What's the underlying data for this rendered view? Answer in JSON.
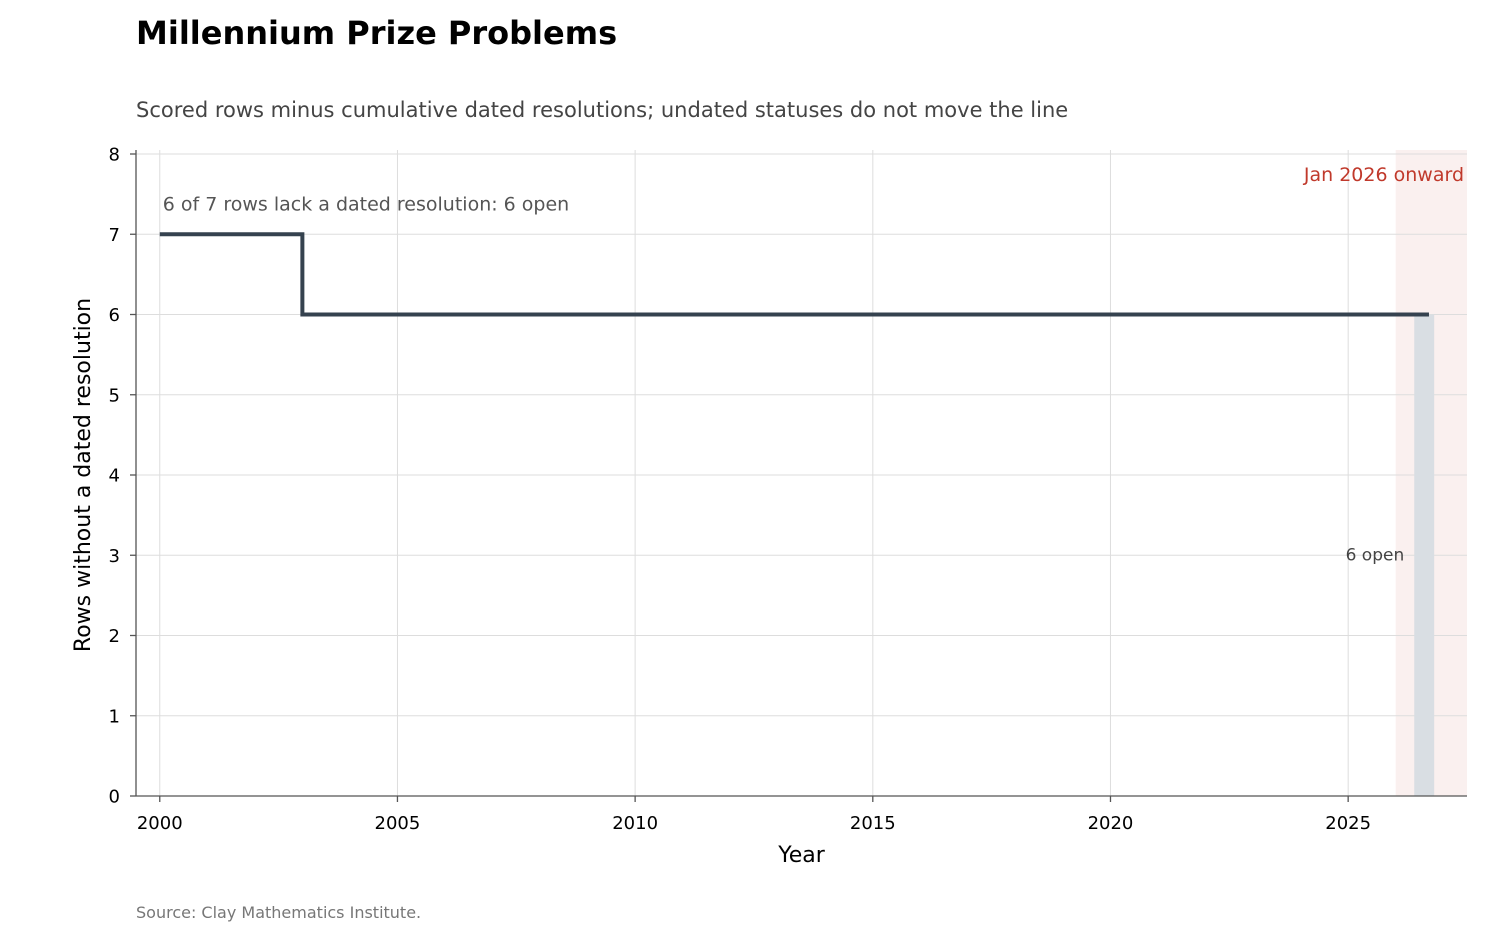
{
  "title": "Millennium Prize Problems",
  "subtitle": "Scored rows minus cumulative dated resolutions; undated statuses do not move the line",
  "source": "Source: Clay Mathematics Institute.",
  "chart_data": {
    "type": "line",
    "step": "post",
    "xlabel": "Year",
    "ylabel": "Rows without a dated resolution",
    "xlim": [
      1999.5,
      2027.5
    ],
    "ylim": [
      0,
      8
    ],
    "xticks": [
      2000,
      2005,
      2010,
      2015,
      2020,
      2025
    ],
    "yticks": [
      0,
      1,
      2,
      3,
      4,
      5,
      6,
      7,
      8
    ],
    "grid": true,
    "colors": {
      "line": "#35424f",
      "bar": "#d9dee3",
      "region_fill": "#faf0ef",
      "region_text": "#c0392b",
      "grid": "#dddddd"
    },
    "series": [
      {
        "x": [
          2000,
          2003,
          2026.7
        ],
        "y": [
          7,
          6,
          6
        ]
      }
    ],
    "annotations": [
      {
        "text": "6 of 7 rows lack a dated resolution: 6 open",
        "x": 2000,
        "y": 7
      }
    ],
    "shaded_region": {
      "x": [
        2026,
        2027.5
      ],
      "label": "Jan 2026 onward"
    },
    "bar": {
      "x": 2026.6,
      "width": 0.42,
      "value": 6,
      "label": "6 open"
    }
  }
}
